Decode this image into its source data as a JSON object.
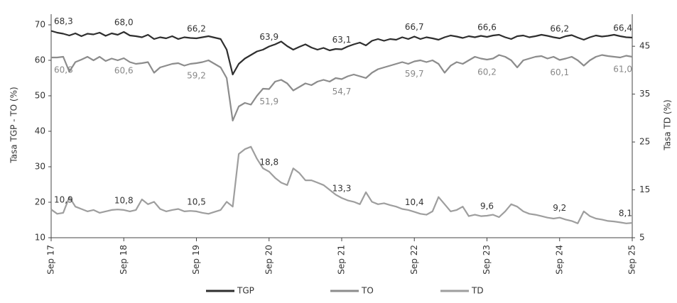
{
  "chart_data": {
    "type": "line",
    "y_label": "Tasa TGP - TO (%)",
    "y2_label": "Tasa TD (%)",
    "categories": [
      "Sep 17",
      null,
      null,
      null,
      null,
      null,
      null,
      null,
      null,
      null,
      null,
      null,
      "Sep 18",
      null,
      null,
      null,
      null,
      null,
      null,
      null,
      null,
      null,
      null,
      null,
      "Sep 19",
      null,
      null,
      null,
      null,
      null,
      null,
      null,
      null,
      null,
      null,
      null,
      "Sep 20",
      null,
      null,
      null,
      null,
      null,
      null,
      null,
      null,
      null,
      null,
      null,
      "Sep 21",
      null,
      null,
      null,
      null,
      null,
      null,
      null,
      null,
      null,
      null,
      null,
      "Sep 22",
      null,
      null,
      null,
      null,
      null,
      null,
      null,
      null,
      null,
      null,
      null,
      "Sep 23",
      null,
      null,
      null,
      null,
      null,
      null,
      null,
      null,
      null,
      null,
      null,
      "Sep 24",
      null,
      null,
      null,
      null,
      null,
      null,
      null,
      null,
      null,
      null,
      null,
      "Sep 25"
    ],
    "ylim": [
      10,
      73
    ],
    "yticks": [
      10,
      20,
      30,
      40,
      50,
      60,
      70
    ],
    "y2lim": [
      5,
      51.7
    ],
    "y2ticks": [
      5,
      15,
      25,
      35,
      45
    ],
    "legend": "bottom",
    "series": [
      {
        "name": "TGP",
        "color": "#2e2e2e",
        "axis": "y",
        "values": [
          68.3,
          67.8,
          67.5,
          67.0,
          67.6,
          66.8,
          67.5,
          67.3,
          67.8,
          66.9,
          67.6,
          67.2,
          68.0,
          67.0,
          66.8,
          66.5,
          67.2,
          66.0,
          66.5,
          66.2,
          66.8,
          66.0,
          66.5,
          66.3,
          66.2,
          66.5,
          66.8,
          66.4,
          66.0,
          63.0,
          56.0,
          59.0,
          60.5,
          61.5,
          62.5,
          63.0,
          63.9,
          64.5,
          65.3,
          64.0,
          63.0,
          63.8,
          64.5,
          63.6,
          63.0,
          63.5,
          62.8,
          63.2,
          63.1,
          63.9,
          64.5,
          65.0,
          64.2,
          65.5,
          66.0,
          65.5,
          66.0,
          65.8,
          66.5,
          66.0,
          66.7,
          66.0,
          66.5,
          66.2,
          65.8,
          66.5,
          67.0,
          66.7,
          66.3,
          66.8,
          66.5,
          66.9,
          66.6,
          67.0,
          67.2,
          66.5,
          66.0,
          66.8,
          67.0,
          66.5,
          66.8,
          67.2,
          66.9,
          66.5,
          66.2,
          66.8,
          67.1,
          66.4,
          65.8,
          66.5,
          67.0,
          66.7,
          66.9,
          67.2,
          66.8,
          66.5,
          66.4
        ],
        "value_labels": [
          "68,3",
          null,
          null,
          null,
          null,
          null,
          null,
          null,
          null,
          null,
          null,
          null,
          "68,0",
          null,
          null,
          null,
          null,
          null,
          null,
          null,
          null,
          null,
          null,
          null,
          "66,2",
          null,
          null,
          null,
          null,
          null,
          null,
          null,
          null,
          null,
          null,
          null,
          "63,9",
          null,
          null,
          null,
          null,
          null,
          null,
          null,
          null,
          null,
          null,
          null,
          "63,1",
          null,
          null,
          null,
          null,
          null,
          null,
          null,
          null,
          null,
          null,
          null,
          "66,7",
          null,
          null,
          null,
          null,
          null,
          null,
          null,
          null,
          null,
          null,
          null,
          "66,6",
          null,
          null,
          null,
          null,
          null,
          null,
          null,
          null,
          null,
          null,
          null,
          "66,2",
          null,
          null,
          null,
          null,
          null,
          null,
          null,
          null,
          null,
          null,
          null,
          "66,4"
        ]
      },
      {
        "name": "TO",
        "color": "#8c8c8c",
        "axis": "y",
        "values": [
          60.8,
          60.8,
          61.0,
          56.8,
          59.5,
          60.2,
          61.0,
          60.0,
          61.0,
          59.8,
          60.5,
          60.0,
          60.6,
          59.5,
          59.0,
          59.2,
          59.5,
          56.5,
          58.0,
          58.5,
          59.0,
          59.2,
          58.5,
          59.0,
          59.2,
          59.5,
          60.0,
          59.0,
          58.0,
          55.0,
          43.0,
          47.0,
          48.0,
          47.5,
          50.0,
          52.0,
          51.9,
          54.0,
          54.5,
          53.5,
          51.5,
          52.5,
          53.5,
          53.0,
          54.0,
          54.5,
          54.0,
          55.0,
          54.7,
          55.5,
          56.0,
          55.5,
          55.0,
          56.5,
          57.5,
          58.0,
          58.5,
          59.0,
          59.5,
          59.0,
          59.7,
          60.0,
          59.5,
          60.0,
          59.0,
          56.5,
          58.5,
          59.5,
          59.0,
          60.0,
          61.0,
          60.5,
          60.2,
          60.5,
          61.5,
          61.0,
          60.0,
          58.0,
          60.0,
          60.5,
          61.0,
          61.2,
          60.5,
          61.0,
          60.1,
          60.5,
          61.0,
          60.0,
          58.5,
          60.0,
          61.0,
          61.5,
          61.2,
          61.0,
          60.8,
          61.3,
          61.0
        ],
        "value_labels": [
          "60,8",
          null,
          null,
          null,
          null,
          null,
          null,
          null,
          null,
          null,
          null,
          null,
          "60,6",
          null,
          null,
          null,
          null,
          null,
          null,
          null,
          null,
          null,
          null,
          null,
          "59,2",
          null,
          null,
          null,
          null,
          null,
          null,
          null,
          null,
          null,
          null,
          null,
          "51,9",
          null,
          null,
          null,
          null,
          null,
          null,
          null,
          null,
          null,
          null,
          null,
          "54,7",
          null,
          null,
          null,
          null,
          null,
          null,
          null,
          null,
          null,
          null,
          null,
          "59,7",
          null,
          null,
          null,
          null,
          null,
          null,
          null,
          null,
          null,
          null,
          null,
          "60,2",
          null,
          null,
          null,
          null,
          null,
          null,
          null,
          null,
          null,
          null,
          null,
          "60,1",
          null,
          null,
          null,
          null,
          null,
          null,
          null,
          null,
          null,
          null,
          null,
          "61,0"
        ]
      },
      {
        "name": "TD",
        "color": "#9e9e9e",
        "axis": "y2",
        "values": [
          10.9,
          10.0,
          10.2,
          13.5,
          11.5,
          11.0,
          10.5,
          10.8,
          10.2,
          10.5,
          10.8,
          10.9,
          10.8,
          10.5,
          10.8,
          13.0,
          12.0,
          12.5,
          11.0,
          10.5,
          10.8,
          11.0,
          10.5,
          10.6,
          10.5,
          10.2,
          10.0,
          10.4,
          10.8,
          12.5,
          11.5,
          22.5,
          23.5,
          24.0,
          21.5,
          19.5,
          18.8,
          17.5,
          16.5,
          16.0,
          19.5,
          18.5,
          17.0,
          17.0,
          16.5,
          16.0,
          15.0,
          14.0,
          13.3,
          12.8,
          12.5,
          12.0,
          14.5,
          12.5,
          12.0,
          12.2,
          11.8,
          11.5,
          11.0,
          10.8,
          10.4,
          10.0,
          9.8,
          10.5,
          13.5,
          12.0,
          10.5,
          10.8,
          11.5,
          9.5,
          9.8,
          9.5,
          9.6,
          9.8,
          9.3,
          10.5,
          12.0,
          11.5,
          10.5,
          10.0,
          9.8,
          9.5,
          9.2,
          9.0,
          9.2,
          8.8,
          8.5,
          8.0,
          10.5,
          9.5,
          9.0,
          8.8,
          8.5,
          8.4,
          8.2,
          8.0,
          8.1
        ],
        "value_labels": [
          "10,9",
          null,
          null,
          null,
          null,
          null,
          null,
          null,
          null,
          null,
          null,
          null,
          "10,8",
          null,
          null,
          null,
          null,
          null,
          null,
          null,
          null,
          null,
          null,
          null,
          "10,5",
          null,
          null,
          null,
          null,
          null,
          null,
          null,
          null,
          null,
          null,
          null,
          "18,8",
          null,
          null,
          null,
          null,
          null,
          null,
          null,
          null,
          null,
          null,
          null,
          "13,3",
          null,
          null,
          null,
          null,
          null,
          null,
          null,
          null,
          null,
          null,
          null,
          "10,4",
          null,
          null,
          null,
          null,
          null,
          null,
          null,
          null,
          null,
          null,
          null,
          "9,6",
          null,
          null,
          null,
          null,
          null,
          null,
          null,
          null,
          null,
          null,
          null,
          "9,2",
          null,
          null,
          null,
          null,
          null,
          null,
          null,
          null,
          null,
          null,
          null,
          "8,1"
        ]
      }
    ]
  }
}
